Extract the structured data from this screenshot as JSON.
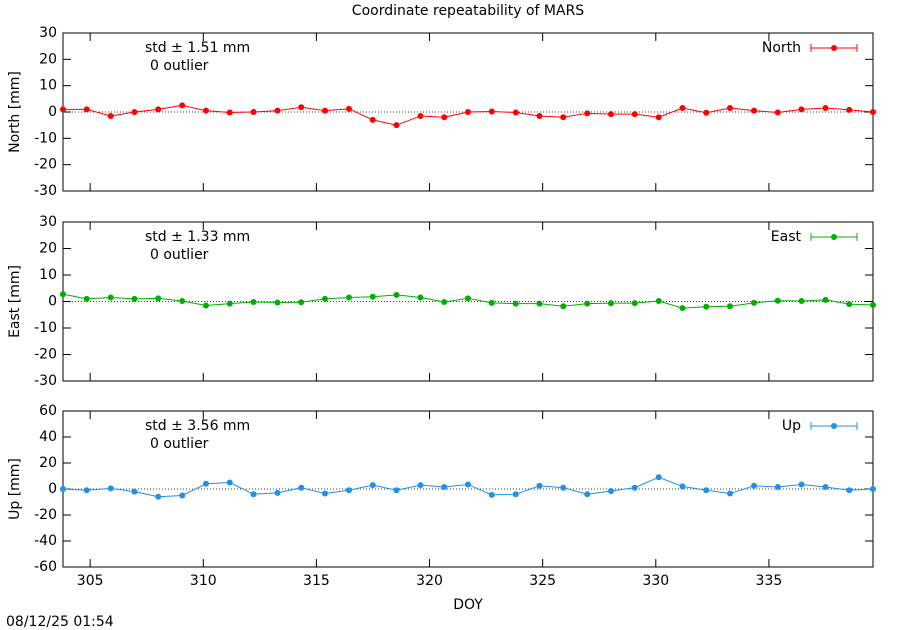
{
  "chart_data": [
    {
      "type": "line",
      "title": "Coordinate repeatability of MARS",
      "ylabel": "North [mm]",
      "annotations": [
        "std ± 1.51 mm",
        "0 outlier"
      ],
      "x": [
        303.8,
        304.85,
        305.91,
        306.96,
        308.01,
        309.07,
        310.12,
        311.17,
        312.22,
        313.28,
        314.33,
        315.38,
        316.44,
        317.49,
        318.54,
        319.6,
        320.65,
        321.7,
        322.75,
        323.81,
        324.86,
        325.91,
        326.97,
        328.02,
        329.07,
        330.13,
        331.18,
        332.23,
        333.28,
        334.34,
        335.39,
        336.44,
        337.5,
        338.55,
        339.6
      ],
      "series": [
        {
          "name": "North",
          "color": "#ff0000",
          "values": [
            1,
            1,
            -1.5,
            0,
            1,
            2.5,
            0.5,
            -0.2,
            0,
            0.5,
            1.8,
            0.5,
            1.2,
            -3,
            -5,
            -1.5,
            -2,
            0,
            0.2,
            -0.2,
            -1.5,
            -2,
            -0.5,
            -0.8,
            -0.8,
            -2,
            1.5,
            -0.3,
            1.5,
            0.5,
            -0.2,
            1,
            1.5,
            0.8,
            0
          ]
        }
      ],
      "xlim": [
        303.8,
        339.6
      ],
      "ylim": [
        -30,
        30
      ],
      "yticks": [
        -30,
        -20,
        -10,
        0,
        10,
        20,
        30
      ]
    },
    {
      "type": "line",
      "ylabel": "East [mm]",
      "annotations": [
        "std ± 1.33 mm",
        "0 outlier"
      ],
      "x": [
        303.8,
        304.85,
        305.91,
        306.96,
        308.01,
        309.07,
        310.12,
        311.17,
        312.22,
        313.28,
        314.33,
        315.38,
        316.44,
        317.49,
        318.54,
        319.6,
        320.65,
        321.7,
        322.75,
        323.81,
        324.86,
        325.91,
        326.97,
        328.02,
        329.07,
        330.13,
        331.18,
        332.23,
        333.28,
        334.34,
        335.39,
        336.44,
        337.5,
        338.55,
        339.6
      ],
      "series": [
        {
          "name": "East",
          "color": "#00b000",
          "values": [
            2.8,
            1,
            1.5,
            1,
            1.2,
            0.2,
            -1.5,
            -0.8,
            -0.2,
            -0.4,
            -0.3,
            1,
            1.5,
            1.8,
            2.5,
            1.5,
            -0.2,
            1.2,
            -0.5,
            -0.8,
            -0.8,
            -1.8,
            -0.8,
            -0.6,
            -0.6,
            0.2,
            -2.5,
            -2,
            -1.8,
            -0.5,
            0.3,
            0.2,
            0.6,
            -1,
            -1.3
          ]
        }
      ],
      "xlim": [
        303.8,
        339.6
      ],
      "ylim": [
        -30,
        30
      ],
      "yticks": [
        -30,
        -20,
        -10,
        0,
        10,
        20,
        30
      ]
    },
    {
      "type": "line",
      "ylabel": "Up [mm]",
      "xlabel": "DOY",
      "annotations": [
        "std ± 3.56 mm",
        "0 outlier"
      ],
      "x": [
        303.8,
        304.85,
        305.91,
        306.96,
        308.01,
        309.07,
        310.12,
        311.17,
        312.22,
        313.28,
        314.33,
        315.38,
        316.44,
        317.49,
        318.54,
        319.6,
        320.65,
        321.7,
        322.75,
        323.81,
        324.86,
        325.91,
        326.97,
        328.02,
        329.07,
        330.13,
        331.18,
        332.23,
        333.28,
        334.34,
        335.39,
        336.44,
        337.5,
        338.55,
        339.6
      ],
      "series": [
        {
          "name": "Up",
          "color": "#2090e8",
          "values": [
            0,
            -1,
            0.5,
            -2,
            -6,
            -5,
            4,
            5,
            -4,
            -3,
            1,
            -3.5,
            -1,
            3,
            -1,
            3,
            1.5,
            3.5,
            -4.5,
            -4,
            2.5,
            1,
            -4,
            -1.5,
            1,
            9,
            2,
            -1,
            -3.5,
            2.5,
            1.5,
            3.5,
            1.5,
            -1,
            0
          ]
        }
      ],
      "xlim": [
        303.8,
        339.6
      ],
      "ylim": [
        -60,
        60
      ],
      "yticks": [
        -60,
        -40,
        -20,
        0,
        20,
        40,
        60
      ],
      "xticks": [
        305,
        310,
        315,
        320,
        325,
        330,
        335
      ]
    }
  ],
  "timestamp": "08/12/25 01:54"
}
